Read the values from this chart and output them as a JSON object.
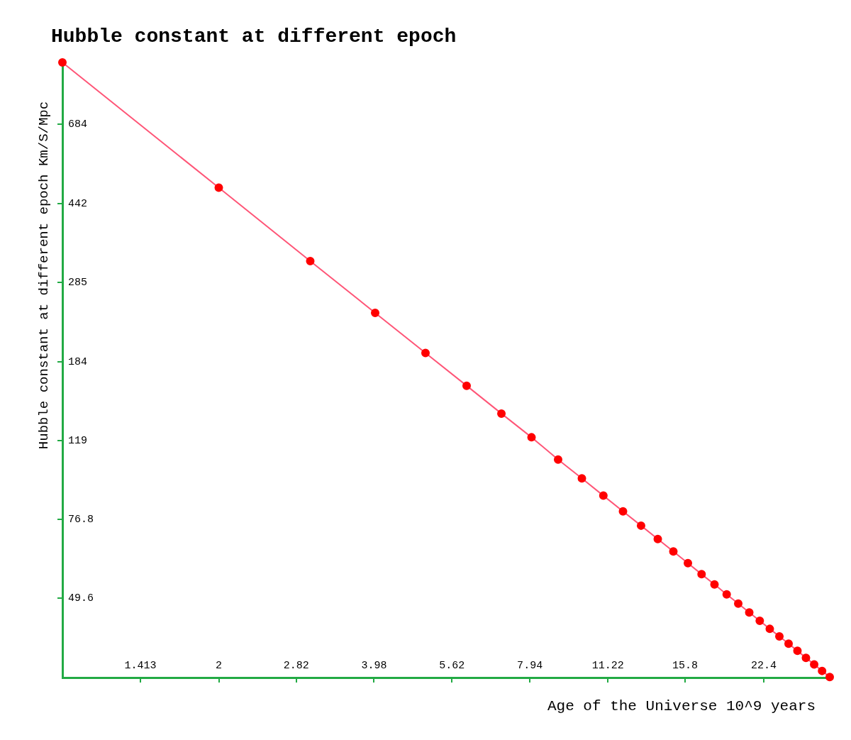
{
  "chart_data": {
    "type": "line",
    "title": "Hubble constant at different epoch",
    "xlabel": "Age of the Universe 10^9 years",
    "ylabel": "Hubble constant at different epoch Km/S/Mpc",
    "x": [
      1,
      2,
      3,
      4,
      5,
      6,
      7,
      8,
      9,
      10,
      11,
      12,
      13,
      14,
      15,
      16,
      17,
      18,
      19,
      20,
      21,
      22,
      23,
      24,
      25,
      26,
      27,
      28,
      29,
      30
    ],
    "series": [
      {
        "color": "#ff0000",
        "values": [
          964,
          482,
          321,
          241,
          193,
          161,
          138,
          121,
          107,
          96.4,
          87.6,
          80.3,
          74.2,
          68.9,
          64.3,
          60.3,
          56.7,
          53.6,
          50.7,
          48.2,
          45.9,
          43.8,
          41.9,
          40.2,
          38.6,
          37.1,
          35.7,
          34.4,
          33.2,
          32.1
        ]
      }
    ],
    "log": "xy",
    "xlim": [
      1,
      30
    ],
    "ylim": [
      32,
      964
    ],
    "xticks": [
      1.413,
      2,
      2.82,
      3.98,
      5.62,
      7.94,
      11.22,
      15.8,
      22.4
    ],
    "yticks": [
      49.6,
      76.8,
      119,
      184,
      285,
      442,
      684
    ],
    "grid": false,
    "legend": false,
    "marker": "circle",
    "line_style": "solid"
  }
}
